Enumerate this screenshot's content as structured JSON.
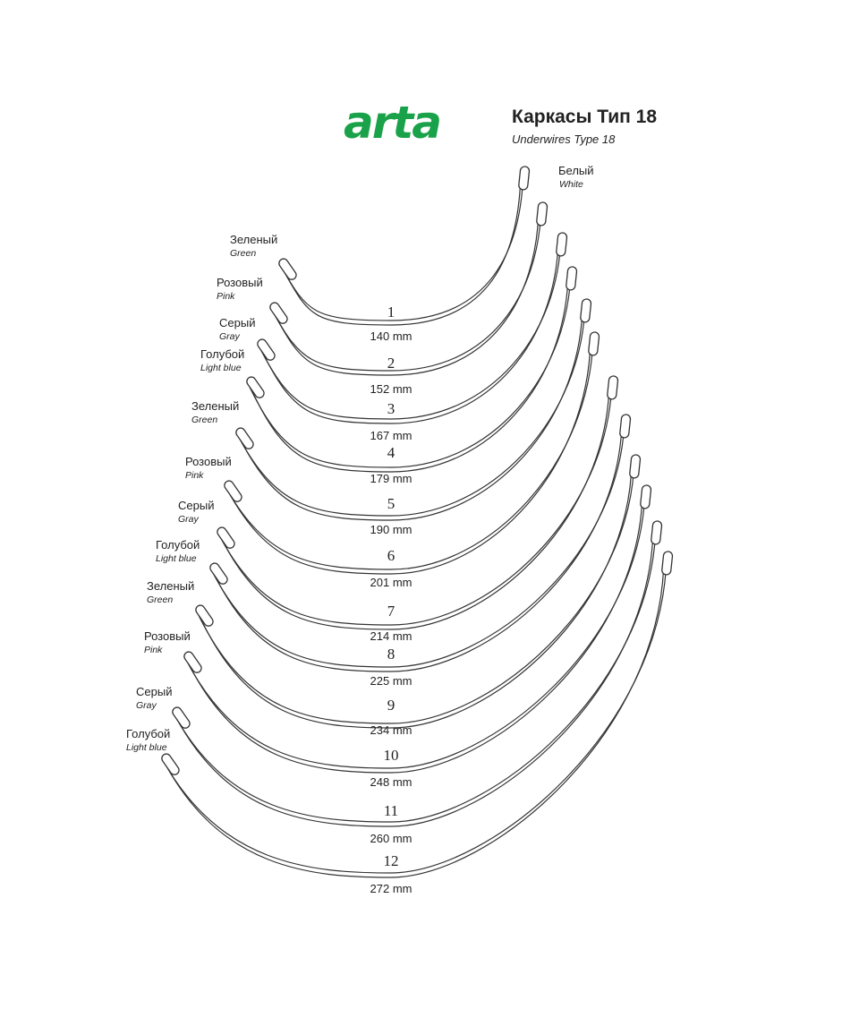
{
  "header": {
    "logo": "arta",
    "title": "Каркасы Тип 18",
    "subtitle": "Underwires Type 18"
  },
  "colors": {
    "logo": "#1aa24a",
    "line": "#333333"
  },
  "top_label": {
    "ru": "Белый",
    "en": "White"
  },
  "wires": [
    {
      "number": "1",
      "length": "140 mm",
      "ru": "Зеленый",
      "en": "Green"
    },
    {
      "number": "2",
      "length": "152 mm",
      "ru": "Розовый",
      "en": "Pink"
    },
    {
      "number": "3",
      "length": "167 mm",
      "ru": "Серый",
      "en": "Gray"
    },
    {
      "number": "4",
      "length": "179 mm",
      "ru": "Голубой",
      "en": "Light blue"
    },
    {
      "number": "5",
      "length": "190 mm",
      "ru": "Зеленый",
      "en": "Green"
    },
    {
      "number": "6",
      "length": "201 mm",
      "ru": "Розовый",
      "en": "Pink"
    },
    {
      "number": "7",
      "length": "214 mm",
      "ru": "Серый",
      "en": "Gray"
    },
    {
      "number": "8",
      "length": "225 mm",
      "ru": "Голубой",
      "en": "Light blue"
    },
    {
      "number": "9",
      "length": "234 mm",
      "ru": "Зеленый",
      "en": "Green"
    },
    {
      "number": "10",
      "length": "248 mm",
      "ru": "Розовый",
      "en": "Pink"
    },
    {
      "number": "11",
      "length": "260 mm",
      "ru": "Серый",
      "en": "Gray"
    },
    {
      "number": "12",
      "length": "272 mm",
      "ru": "Голубой",
      "en": "Light blue"
    }
  ]
}
